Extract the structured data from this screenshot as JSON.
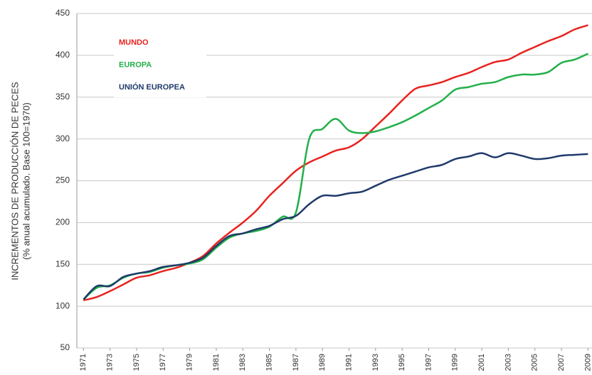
{
  "chart_data": {
    "type": "line",
    "y_label": [
      "INCREMENTOS DE PRODUCCIÓN DE PECES",
      "(% anual acumulado. Base 100=1970)"
    ],
    "x": [
      1971,
      1972,
      1973,
      1974,
      1975,
      1976,
      1977,
      1978,
      1979,
      1980,
      1981,
      1982,
      1983,
      1984,
      1985,
      1986,
      1987,
      1988,
      1989,
      1990,
      1991,
      1992,
      1993,
      1994,
      1995,
      1996,
      1997,
      1998,
      1999,
      2000,
      2001,
      2002,
      2003,
      2004,
      2005,
      2006,
      2007,
      2008,
      2009
    ],
    "series": [
      {
        "name": "MUNDO",
        "color": "#e8231f",
        "values": [
          107,
          111,
          118,
          126,
          134,
          137,
          142,
          146,
          152,
          160,
          175,
          188,
          200,
          214,
          232,
          247,
          262,
          272,
          279,
          286,
          290,
          300,
          315,
          330,
          346,
          360,
          364,
          368,
          374,
          379,
          386,
          392,
          395,
          403,
          410,
          417,
          423,
          431,
          436
        ]
      },
      {
        "name": "EUROPA",
        "color": "#22b04a",
        "values": [
          108,
          122,
          125,
          134,
          139,
          141,
          146,
          149,
          151,
          156,
          170,
          182,
          187,
          190,
          195,
          207,
          212,
          300,
          312,
          324,
          310,
          307,
          309,
          314,
          320,
          328,
          337,
          346,
          359,
          362,
          366,
          368,
          374,
          377,
          377,
          380,
          391,
          395,
          402
        ]
      },
      {
        "name": "UNIÓN EUROPEA",
        "color": "#1f3a6a",
        "values": [
          108,
          124,
          124,
          135,
          139,
          142,
          147,
          149,
          152,
          158,
          172,
          184,
          187,
          192,
          196,
          204,
          208,
          222,
          232,
          232,
          235,
          237,
          244,
          251,
          256,
          261,
          266,
          269,
          276,
          279,
          283,
          278,
          283,
          280,
          276,
          277,
          280,
          281,
          282
        ]
      }
    ],
    "xlim": [
      1970.5,
      2009.3
    ],
    "xticks": [
      1971,
      1973,
      1975,
      1977,
      1979,
      1981,
      1983,
      1985,
      1987,
      1989,
      1991,
      1993,
      1995,
      1997,
      1999,
      2001,
      2003,
      2005,
      2007,
      2009
    ],
    "ylim": [
      50,
      450
    ],
    "yticks": [
      50,
      100,
      150,
      200,
      250,
      300,
      350,
      400,
      450
    ],
    "grid": true
  }
}
